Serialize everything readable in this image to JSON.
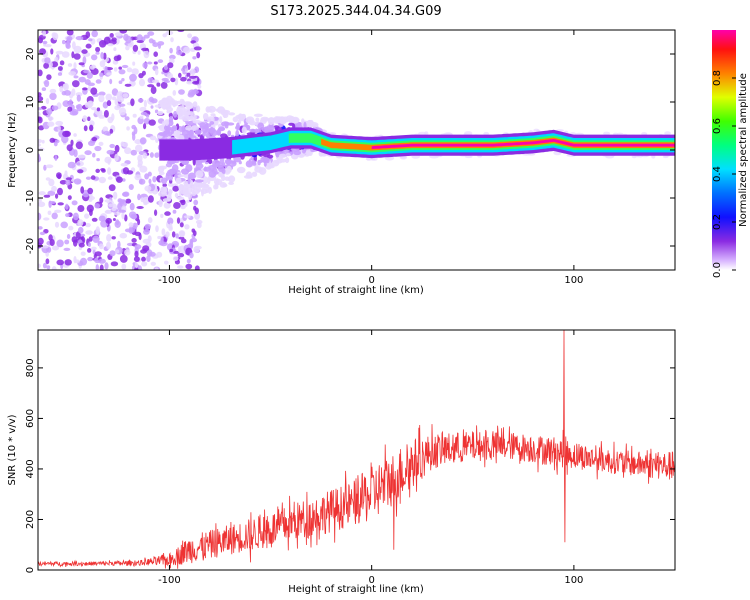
{
  "title": "S173.2025.344.04.34.G09",
  "chart_data": [
    {
      "type": "heatmap",
      "xlabel": "Height of straight line (km)",
      "ylabel": "Frequency (Hz)",
      "xlim": [
        -165,
        150
      ],
      "ylim": [
        -25,
        25
      ],
      "xticks": [
        -100,
        0,
        100
      ],
      "yticks": [
        -20,
        -10,
        0,
        10,
        20
      ],
      "ridge": {
        "description_values": "dominant frequency band (Hz) vs height (km)",
        "x": [
          -110,
          -90,
          -70,
          -50,
          -40,
          -30,
          -20,
          0,
          20,
          60,
          80,
          90,
          100,
          150
        ],
        "y": [
          0,
          0,
          0.5,
          1.5,
          2.5,
          2.5,
          1,
          0.5,
          1,
          1,
          1.5,
          2,
          1,
          1
        ],
        "amplitude": [
          0.2,
          0.3,
          0.4,
          0.5,
          0.6,
          0.7,
          0.85,
          0.9,
          0.92,
          0.95,
          0.95,
          0.9,
          0.92,
          0.9
        ]
      },
      "colorbar": {
        "label": "Normalized spectral amplitude",
        "range": [
          0.0,
          1.0
        ],
        "ticks": [
          "0.0",
          "0.2",
          "0.4",
          "0.6",
          "0.8"
        ]
      }
    },
    {
      "type": "line",
      "xlabel": "Height of straight line (km)",
      "ylabel": "SNR (10 * v/v)",
      "xlim": [
        -165,
        150
      ],
      "ylim": [
        0,
        950
      ],
      "xticks": [
        -100,
        0,
        100
      ],
      "yticks": [
        0,
        200,
        400,
        600,
        800
      ],
      "color": "#ee3333",
      "envelope": {
        "x": [
          -165,
          -140,
          -115,
          -100,
          -90,
          -70,
          -50,
          -30,
          -10,
          0,
          10,
          20,
          30,
          50,
          70,
          90,
          110,
          130,
          150
        ],
        "mean": [
          25,
          25,
          28,
          40,
          80,
          120,
          160,
          210,
          260,
          300,
          360,
          420,
          470,
          490,
          490,
          470,
          440,
          420,
          410
        ],
        "spread": [
          8,
          8,
          10,
          25,
          55,
          60,
          70,
          80,
          90,
          110,
          110,
          100,
          70,
          60,
          55,
          60,
          50,
          50,
          60
        ]
      },
      "spikes": [
        {
          "x": 95,
          "y": 950
        },
        {
          "x": 95.5,
          "y": 110
        },
        {
          "x": 11,
          "y": 80
        },
        {
          "x": -60,
          "y": 30
        }
      ]
    }
  ]
}
